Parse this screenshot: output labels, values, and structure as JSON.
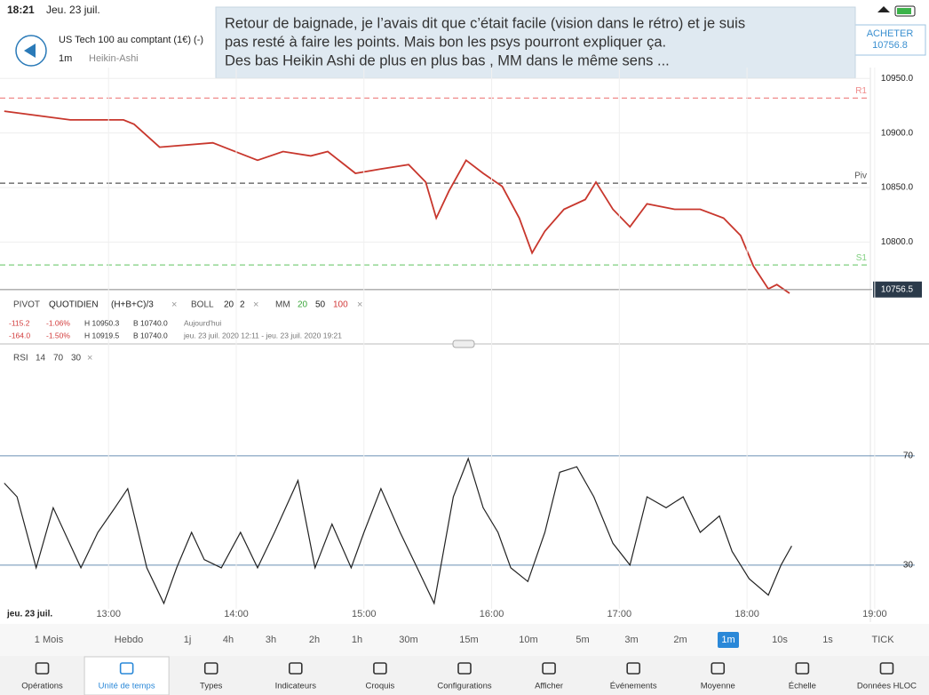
{
  "status": {
    "time": "18:21",
    "date": "Jeu. 23 juil."
  },
  "header": {
    "instrument": "US Tech 100 au comptant (1€) (-)",
    "interval": "1m",
    "chart_type": "Heikin-Ashi"
  },
  "annotation": {
    "lines": [
      "Retour de baignade, je l’avais dit que c’était facile (vision dans le rétro) et je suis",
      "pas resté à faire les points. Mais bon les psys pourront expliquer ça.",
      "Des bas Heikin Ashi de plus en plus bas , MM dans le même sens ..."
    ]
  },
  "buy": {
    "label": "ACHETER",
    "price": "10756.8"
  },
  "chart_data": [
    {
      "type": "line",
      "x": [
        "12:11",
        "12:42",
        "13:07",
        "13:12",
        "13:24",
        "13:49",
        "14:10",
        "14:22",
        "14:35",
        "14:43",
        "14:56",
        "15:08",
        "15:21",
        "15:29",
        "15:34",
        "15:40",
        "15:48",
        "15:56",
        "16:05",
        "16:13",
        "16:19",
        "16:25",
        "16:34",
        "16:44",
        "16:49",
        "16:57",
        "17:05",
        "17:13",
        "17:26",
        "17:38",
        "17:49",
        "17:57",
        "18:03",
        "18:10",
        "18:14",
        "18:20"
      ],
      "values": [
        10920,
        10912,
        10912,
        10908,
        10887,
        10891,
        10875,
        10883,
        10879,
        10883,
        10863,
        10867,
        10871,
        10855,
        10822,
        10847,
        10875,
        10863,
        10851,
        10822,
        10790,
        10810,
        10830,
        10839,
        10855,
        10830,
        10814,
        10835,
        10830,
        10830,
        10822,
        10806,
        10778,
        10757,
        10761,
        10753
      ],
      "color": "#c8372d",
      "xlim": [
        "12:09",
        "19:23"
      ],
      "ylim": [
        10740,
        10960
      ],
      "yticks": [
        {
          "value": 10950,
          "label": "10950.0"
        },
        {
          "value": 10900,
          "label": "10900.0"
        },
        {
          "value": 10850,
          "label": "10850.0"
        },
        {
          "value": 10800,
          "label": "10800.0"
        }
      ],
      "levels": [
        {
          "name": "R1",
          "value": 10932,
          "color": "#ef8a8a"
        },
        {
          "name": "Piv",
          "value": 10854,
          "color": "#555555"
        },
        {
          "name": "S1",
          "value": 10779,
          "color": "#7fcf7f"
        }
      ],
      "last": 10756.5
    },
    {
      "type": "line",
      "x": [
        "12:11",
        "12:17",
        "12:26",
        "12:34",
        "12:47",
        "12:55",
        "13:03",
        "13:09",
        "13:18",
        "13:26",
        "13:32",
        "13:39",
        "13:45",
        "13:53",
        "14:02",
        "14:10",
        "14:18",
        "14:29",
        "14:37",
        "14:45",
        "14:54",
        "15:00",
        "15:08",
        "15:17",
        "15:25",
        "15:33",
        "15:42",
        "15:49",
        "15:56",
        "16:03",
        "16:09",
        "16:17",
        "16:25",
        "16:32",
        "16:40",
        "16:48",
        "16:57",
        "17:05",
        "17:13",
        "17:22",
        "17:30",
        "17:38",
        "17:47",
        "17:53",
        "18:01",
        "18:10",
        "18:16",
        "18:21"
      ],
      "values": [
        60,
        55,
        29,
        51,
        29,
        42,
        51,
        58,
        29,
        16,
        29,
        42,
        32,
        29,
        42,
        29,
        42,
        61,
        29,
        45,
        29,
        42,
        58,
        42,
        29,
        16,
        55,
        69,
        51,
        42,
        29,
        24,
        42,
        64,
        66,
        55,
        38,
        30,
        55,
        51,
        55,
        42,
        48,
        35,
        25,
        19,
        30,
        37
      ],
      "color": "#222222",
      "xlim": [
        "12:09",
        "19:23"
      ],
      "ylim": [
        14,
        110
      ],
      "yticks": [
        70,
        30
      ],
      "xticks": [
        "13:00",
        "14:00",
        "15:00",
        "16:00",
        "17:00",
        "18:00",
        "19:00"
      ],
      "date_label": "jeu. 23 juil."
    }
  ],
  "indicators": [
    {
      "text": "PIVOT",
      "color": "#444444"
    },
    {
      "text": "QUOTIDIEN",
      "color": "#222222"
    },
    {
      "text": "(H+B+C)/3",
      "color": "#222222"
    },
    {
      "text": "BOLL",
      "color": "#444444"
    },
    {
      "text": "20",
      "color": "#222222"
    },
    {
      "text": "2",
      "color": "#222222"
    },
    {
      "text": "MM",
      "color": "#444444"
    },
    {
      "text": "20",
      "color": "#3aa63a"
    },
    {
      "text": "50",
      "color": "#222222"
    },
    {
      "text": "100",
      "color": "#d23a3a"
    }
  ],
  "stats": [
    [
      "-115.2",
      "-1.06%",
      "H 10950.3",
      "B 10740.0",
      "Aujourd'hui"
    ],
    [
      "-164.0",
      "-1.50%",
      "H 10919.5",
      "B 10740.0",
      "jeu. 23 juil. 2020 12:11 - jeu. 23 juil. 2020 19:21"
    ]
  ],
  "rsi_legend": [
    "RSI",
    "14",
    "70",
    "30"
  ],
  "timeframes": {
    "items": [
      "1 Mois",
      "Hebdo",
      "1j",
      "4h",
      "3h",
      "2h",
      "1h",
      "30m",
      "15m",
      "10m",
      "5m",
      "3m",
      "2m",
      "1m",
      "10s",
      "1s",
      "TICK"
    ],
    "selected": 13
  },
  "toolbar": {
    "items": [
      "Opérations",
      "Unité de temps",
      "Types",
      "Indicateurs",
      "Croquis",
      "Configurations",
      "Afficher",
      "Événements",
      "Moyenne",
      "Échelle",
      "Données HLOC"
    ],
    "selected": 1
  }
}
